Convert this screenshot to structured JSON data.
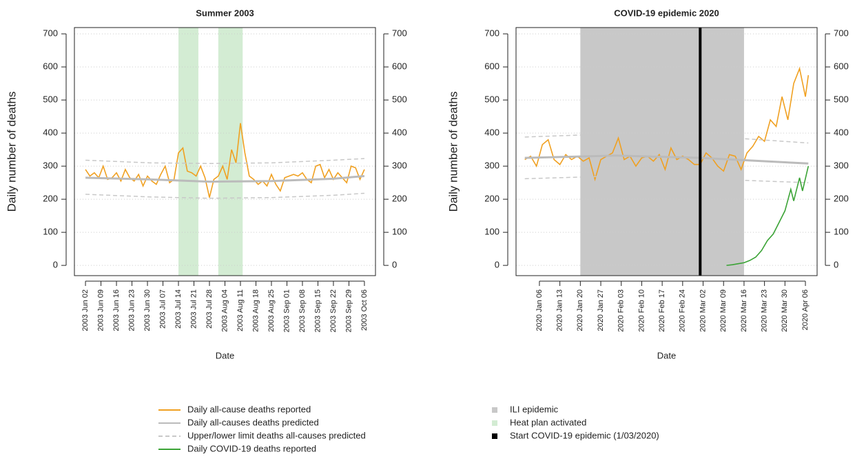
{
  "chart_data": [
    {
      "type": "line",
      "title": "Summer 2003",
      "ylabel": "Daily number of deaths",
      "xlabel": "Date",
      "xlim": [
        "2003-05-28",
        "2003-10-11"
      ],
      "ylim": [
        -31,
        719
      ],
      "yticks": [
        0,
        100,
        200,
        300,
        400,
        500,
        600,
        700
      ],
      "grid": true,
      "xticks": [
        {
          "value": "2003-06-02",
          "label": "2003 Jun 02"
        },
        {
          "value": "2003-06-09",
          "label": "2003 Jun 09"
        },
        {
          "value": "2003-06-16",
          "label": "2003 Jun 16"
        },
        {
          "value": "2003-06-23",
          "label": "2003 Jun 23"
        },
        {
          "value": "2003-06-30",
          "label": "2003 Jun 30"
        },
        {
          "value": "2003-07-07",
          "label": "2003 Jul 07"
        },
        {
          "value": "2003-07-14",
          "label": "2003 Jul 14"
        },
        {
          "value": "2003-07-21",
          "label": "2003 Jul 21"
        },
        {
          "value": "2003-07-28",
          "label": "2003 Jul 28"
        },
        {
          "value": "2003-08-04",
          "label": "2003 Aug 04"
        },
        {
          "value": "2003-08-11",
          "label": "2003 Aug 11"
        },
        {
          "value": "2003-08-18",
          "label": "2003 Aug 18"
        },
        {
          "value": "2003-08-25",
          "label": "2003 Aug 25"
        },
        {
          "value": "2003-09-01",
          "label": "2003 Sep 01"
        },
        {
          "value": "2003-09-08",
          "label": "2003 Sep 08"
        },
        {
          "value": "2003-09-15",
          "label": "2003 Sep 15"
        },
        {
          "value": "2003-09-22",
          "label": "2003 Sep 22"
        },
        {
          "value": "2003-09-29",
          "label": "2003 Sep 29"
        },
        {
          "value": "2003-10-06",
          "label": "2003 Oct 06"
        }
      ],
      "region_name": "Heat plan activated",
      "region_color": "#d3ecd3",
      "regions": [
        {
          "start": "2003-07-14",
          "end": "2003-07-23"
        },
        {
          "start": "2003-08-01",
          "end": "2003-08-12"
        }
      ],
      "series": [
        {
          "color": "#f0a020",
          "x": [
            "2003-06-02",
            "2003-06-04",
            "2003-06-06",
            "2003-06-08",
            "2003-06-10",
            "2003-06-12",
            "2003-06-14",
            "2003-06-16",
            "2003-06-18",
            "2003-06-20",
            "2003-06-22",
            "2003-06-24",
            "2003-06-26",
            "2003-06-28",
            "2003-06-30",
            "2003-07-02",
            "2003-07-04",
            "2003-07-06",
            "2003-07-08",
            "2003-07-10",
            "2003-07-12",
            "2003-07-14",
            "2003-07-16",
            "2003-07-18",
            "2003-07-20",
            "2003-07-22",
            "2003-07-24",
            "2003-07-26",
            "2003-07-28",
            "2003-07-30",
            "2003-08-01",
            "2003-08-03",
            "2003-08-05",
            "2003-08-07",
            "2003-08-09",
            "2003-08-11",
            "2003-08-13",
            "2003-08-15",
            "2003-08-17",
            "2003-08-19",
            "2003-08-21",
            "2003-08-23",
            "2003-08-25",
            "2003-08-27",
            "2003-08-29",
            "2003-08-31",
            "2003-09-02",
            "2003-09-04",
            "2003-09-06",
            "2003-09-08",
            "2003-09-10",
            "2003-09-12",
            "2003-09-14",
            "2003-09-16",
            "2003-09-18",
            "2003-09-20",
            "2003-09-22",
            "2003-09-24",
            "2003-09-26",
            "2003-09-28",
            "2003-09-30",
            "2003-10-02",
            "2003-10-04",
            "2003-10-06"
          ],
          "values": [
            290,
            270,
            280,
            265,
            300,
            260,
            265,
            280,
            255,
            290,
            265,
            255,
            275,
            240,
            270,
            255,
            245,
            275,
            300,
            250,
            260,
            340,
            355,
            285,
            280,
            270,
            300,
            265,
            205,
            260,
            270,
            300,
            260,
            350,
            310,
            430,
            340,
            270,
            260,
            245,
            255,
            240,
            275,
            245,
            225,
            265,
            270,
            275,
            270,
            280,
            260,
            250,
            300,
            305,
            265,
            290,
            260,
            280,
            265,
            250,
            300,
            295,
            260,
            290
          ]
        },
        {
          "color": "#bbbbbb",
          "x": [
            "2003-06-02",
            "2003-07-01",
            "2003-07-28",
            "2003-08-25",
            "2003-09-22",
            "2003-10-06"
          ],
          "values": [
            265,
            260,
            253,
            255,
            262,
            270
          ]
        },
        {
          "color": "#c8c8c8",
          "dash": true,
          "x": [
            "2003-06-02",
            "2003-07-01",
            "2003-07-28",
            "2003-08-25",
            "2003-09-22",
            "2003-10-06"
          ],
          "upper": [
            318,
            310,
            308,
            310,
            318,
            323
          ],
          "lower": [
            215,
            207,
            203,
            205,
            212,
            218
          ]
        }
      ]
    },
    {
      "type": "line",
      "title": "COVID-19 epidemic 2020",
      "ylabel": "Daily number of deaths",
      "xlabel": "Date",
      "xlim": [
        "2019-12-29",
        "2020-04-10"
      ],
      "ylim": [
        -31,
        719
      ],
      "yticks": [
        0,
        100,
        200,
        300,
        400,
        500,
        600,
        700
      ],
      "grid": true,
      "xticks": [
        {
          "value": "2020-01-06",
          "label": "2020 Jan 06"
        },
        {
          "value": "2020-01-13",
          "label": "2020 Jan 13"
        },
        {
          "value": "2020-01-20",
          "label": "2020 Jan 20"
        },
        {
          "value": "2020-01-27",
          "label": "2020 Jan 27"
        },
        {
          "value": "2020-02-03",
          "label": "2020 Feb 03"
        },
        {
          "value": "2020-02-10",
          "label": "2020 Feb 10"
        },
        {
          "value": "2020-02-17",
          "label": "2020 Feb 17"
        },
        {
          "value": "2020-02-24",
          "label": "2020 Feb 24"
        },
        {
          "value": "2020-03-02",
          "label": "2020 Mar 02"
        },
        {
          "value": "2020-03-09",
          "label": "2020 Mar 09"
        },
        {
          "value": "2020-03-16",
          "label": "2020 Mar 16"
        },
        {
          "value": "2020-03-23",
          "label": "2020 Mar 23"
        },
        {
          "value": "2020-03-30",
          "label": "2020 Mar 30"
        },
        {
          "value": "2020-04-06",
          "label": "2020 Apr 06"
        }
      ],
      "region_name": "ILI epidemic",
      "region_color": "#c8c8c8",
      "regions": [
        {
          "start": "2020-01-20",
          "end": "2020-03-16"
        }
      ],
      "vline": {
        "x": "2020-03-01",
        "label": "Start COVID-19 epidemic (1/03/2020)",
        "color": "#000000"
      },
      "series": [
        {
          "name": "Daily all-cause deaths reported",
          "color": "#f0a020",
          "x": [
            "2020-01-01",
            "2020-01-03",
            "2020-01-05",
            "2020-01-07",
            "2020-01-09",
            "2020-01-11",
            "2020-01-13",
            "2020-01-15",
            "2020-01-17",
            "2020-01-19",
            "2020-01-21",
            "2020-01-23",
            "2020-01-25",
            "2020-01-27",
            "2020-01-29",
            "2020-01-31",
            "2020-02-02",
            "2020-02-04",
            "2020-02-06",
            "2020-02-08",
            "2020-02-10",
            "2020-02-12",
            "2020-02-14",
            "2020-02-16",
            "2020-02-18",
            "2020-02-20",
            "2020-02-22",
            "2020-02-24",
            "2020-02-26",
            "2020-02-28",
            "2020-03-01",
            "2020-03-03",
            "2020-03-05",
            "2020-03-07",
            "2020-03-09",
            "2020-03-11",
            "2020-03-13",
            "2020-03-15",
            "2020-03-17",
            "2020-03-19",
            "2020-03-21",
            "2020-03-23",
            "2020-03-25",
            "2020-03-27",
            "2020-03-29",
            "2020-03-31",
            "2020-04-02",
            "2020-04-04",
            "2020-04-06",
            "2020-04-07"
          ],
          "values": [
            320,
            330,
            300,
            365,
            380,
            320,
            305,
            335,
            320,
            330,
            315,
            325,
            260,
            320,
            330,
            340,
            385,
            320,
            330,
            300,
            325,
            330,
            315,
            335,
            290,
            355,
            320,
            330,
            320,
            305,
            305,
            340,
            325,
            300,
            285,
            335,
            330,
            290,
            340,
            360,
            390,
            375,
            440,
            420,
            510,
            440,
            550,
            595,
            510,
            575
          ]
        },
        {
          "name": "Daily all-causes deaths predicted",
          "color": "#bbbbbb",
          "x": [
            "2020-01-01",
            "2020-02-01",
            "2020-03-01",
            "2020-04-07"
          ],
          "values": [
            325,
            332,
            325,
            308
          ]
        },
        {
          "name": "Upper/lower limit deaths all-causes predicted",
          "color": "#c8c8c8",
          "dash": true,
          "x": [
            "2020-01-01",
            "2020-02-01",
            "2020-03-01",
            "2020-04-07"
          ],
          "upper": [
            388,
            398,
            392,
            370
          ],
          "lower": [
            262,
            270,
            262,
            250
          ]
        },
        {
          "name": "Daily COVID-19 deaths reported",
          "color": "#3aa335",
          "x": [
            "2020-03-10",
            "2020-03-12",
            "2020-03-14",
            "2020-03-16",
            "2020-03-18",
            "2020-03-20",
            "2020-03-22",
            "2020-03-24",
            "2020-03-26",
            "2020-03-28",
            "2020-03-30",
            "2020-04-01",
            "2020-04-02",
            "2020-04-04",
            "2020-04-05",
            "2020-04-07"
          ],
          "values": [
            0,
            2,
            5,
            8,
            15,
            25,
            45,
            75,
            95,
            130,
            165,
            230,
            195,
            265,
            225,
            300
          ]
        }
      ]
    }
  ]
}
